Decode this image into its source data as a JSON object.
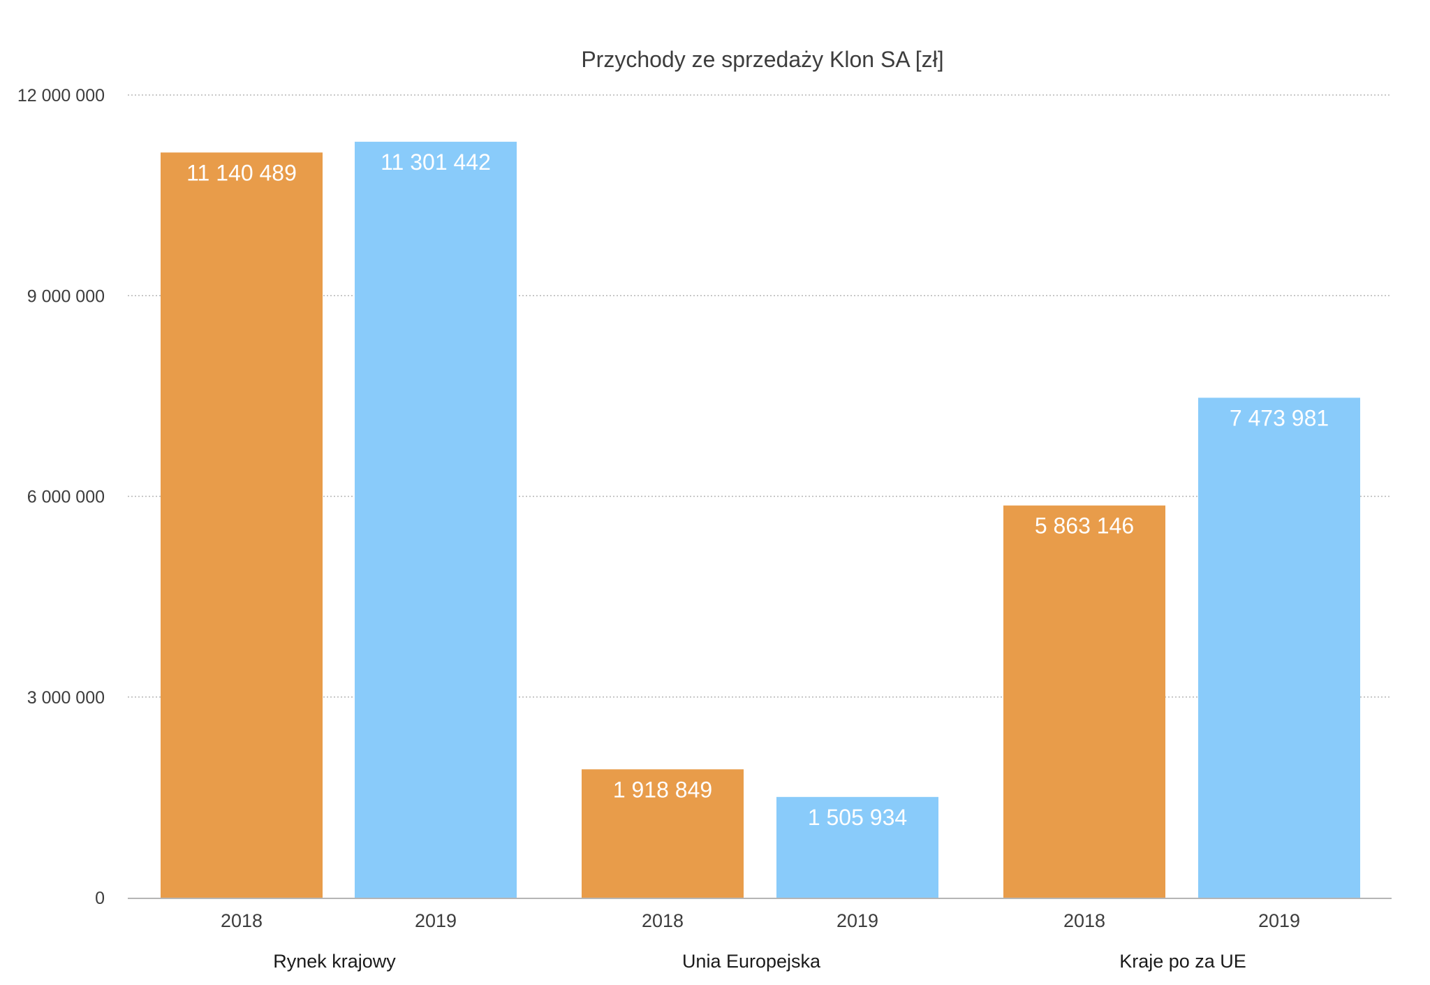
{
  "chart_data": {
    "type": "bar",
    "title": "Przychody ze sprzedaży Klon SA [zł]",
    "xlabel": "",
    "ylabel": "",
    "ylim": [
      0,
      12000000
    ],
    "yticks": [
      0,
      3000000,
      6000000,
      9000000,
      12000000
    ],
    "ytick_labels": [
      "0",
      "3 000 000",
      "6 000 000",
      "9 000 000",
      "12 000 000"
    ],
    "grid": true,
    "legend": "none",
    "colors": {
      "2018": "#e89c4a",
      "2019": "#89cbfa",
      "grid": "#b5b5b5",
      "axis": "#b5b5b5"
    },
    "groups": [
      {
        "label": "Rynek krajowy",
        "bars": [
          {
            "category": "2018",
            "value": 11140489,
            "value_label": "11 140 489"
          },
          {
            "category": "2019",
            "value": 11301442,
            "value_label": "11 301 442"
          }
        ]
      },
      {
        "label": "Unia Europejska",
        "bars": [
          {
            "category": "2018",
            "value": 1918849,
            "value_label": "1 918 849"
          },
          {
            "category": "2019",
            "value": 1505934,
            "value_label": "1 505 934"
          }
        ]
      },
      {
        "label": "Kraje po za UE",
        "bars": [
          {
            "category": "2018",
            "value": 5863146,
            "value_label": "5 863 146"
          },
          {
            "category": "2019",
            "value": 7473981,
            "value_label": "7 473 981"
          }
        ]
      }
    ]
  }
}
